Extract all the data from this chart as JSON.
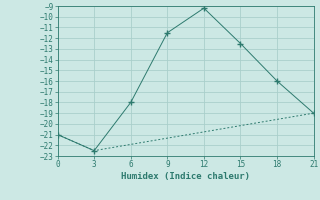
{
  "xlabel": "Humidex (Indice chaleur)",
  "line1_x": [
    0,
    3,
    6,
    9,
    12,
    15,
    18,
    21
  ],
  "line1_y": [
    -21,
    -22.5,
    -18,
    -11.5,
    -9.2,
    -12.5,
    -16,
    -19
  ],
  "line2_x": [
    0,
    3,
    21
  ],
  "line2_y": [
    -21,
    -22.5,
    -19
  ],
  "line_color": "#2d7a6e",
  "bg_color": "#cce8e4",
  "grid_color": "#aacfcb",
  "xlim": [
    0,
    21
  ],
  "ylim": [
    -23,
    -9
  ],
  "xticks": [
    0,
    3,
    6,
    9,
    12,
    15,
    18,
    21
  ],
  "yticks": [
    -9,
    -10,
    -11,
    -12,
    -13,
    -14,
    -15,
    -16,
    -17,
    -18,
    -19,
    -20,
    -21,
    -22,
    -23
  ],
  "tick_fontsize": 5.5,
  "xlabel_fontsize": 6.5
}
